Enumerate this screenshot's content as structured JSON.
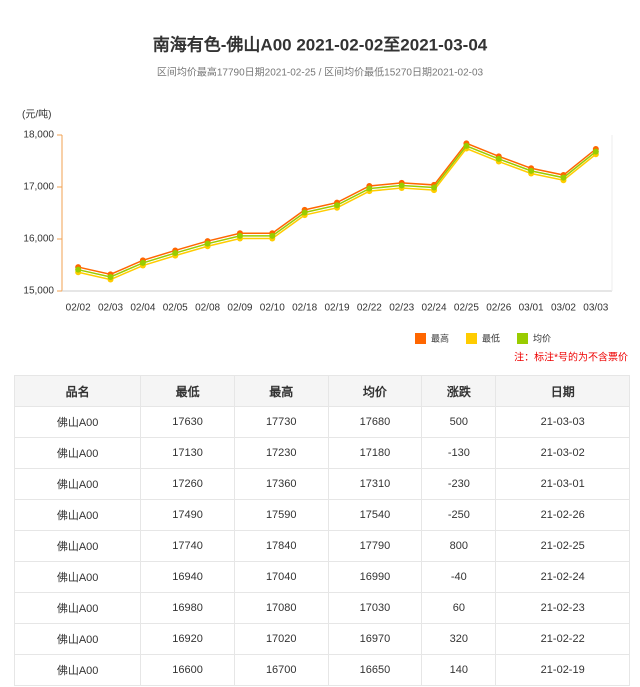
{
  "chart_data": {
    "type": "line",
    "title": "南海有色-佛山A00 2021-02-02至2021-03-04",
    "subtitle": "区间均价最高17790日期2021-02-25 / 区间均价最低15270日期2021-02-03",
    "y_label": "(元/吨)",
    "note": "注：标注*号的为不含票价",
    "categories": [
      "02/02",
      "02/03",
      "02/04",
      "02/05",
      "02/08",
      "02/09",
      "02/10",
      "02/18",
      "02/19",
      "02/22",
      "02/23",
      "02/24",
      "02/25",
      "02/26",
      "03/01",
      "03/02",
      "03/03"
    ],
    "series": [
      {
        "name": "最高",
        "color": "#ff6600",
        "values": [
          15460,
          15320,
          15590,
          15780,
          15960,
          16110,
          16110,
          16560,
          16700,
          17020,
          17080,
          17040,
          17840,
          17590,
          17360,
          17230,
          17730
        ]
      },
      {
        "name": "最低",
        "color": "#ffcc00",
        "values": [
          15360,
          15220,
          15490,
          15680,
          15860,
          16010,
          16010,
          16460,
          16600,
          16920,
          16980,
          16940,
          17740,
          17490,
          17260,
          17130,
          17630
        ]
      },
      {
        "name": "均价",
        "color": "#99cc00",
        "values": [
          15410,
          15270,
          15540,
          15730,
          15910,
          16060,
          16060,
          16510,
          16650,
          16970,
          17030,
          16990,
          17790,
          17540,
          17310,
          17180,
          17680
        ]
      }
    ],
    "ylim": [
      15000,
      18000
    ],
    "yticks": [
      {
        "value": 15000,
        "label": "15,000"
      },
      {
        "value": 16000,
        "label": "16,000"
      },
      {
        "value": 17000,
        "label": "17,000"
      },
      {
        "value": 18000,
        "label": "18,000"
      }
    ],
    "grid": false
  },
  "table": {
    "columns": [
      "品名",
      "最低",
      "最高",
      "均价",
      "涨跌",
      "日期"
    ],
    "rows": [
      [
        "佛山A00",
        17630,
        17730,
        17680,
        500,
        "21-03-03"
      ],
      [
        "佛山A00",
        17130,
        17230,
        17180,
        -130,
        "21-03-02"
      ],
      [
        "佛山A00",
        17260,
        17360,
        17310,
        -230,
        "21-03-01"
      ],
      [
        "佛山A00",
        17490,
        17590,
        17540,
        -250,
        "21-02-26"
      ],
      [
        "佛山A00",
        17740,
        17840,
        17790,
        800,
        "21-02-25"
      ],
      [
        "佛山A00",
        16940,
        17040,
        16990,
        -40,
        "21-02-24"
      ],
      [
        "佛山A00",
        16980,
        17080,
        17030,
        60,
        "21-02-23"
      ],
      [
        "佛山A00",
        16920,
        17020,
        16970,
        320,
        "21-02-22"
      ],
      [
        "佛山A00",
        16600,
        16700,
        16650,
        140,
        "21-02-19"
      ]
    ]
  }
}
